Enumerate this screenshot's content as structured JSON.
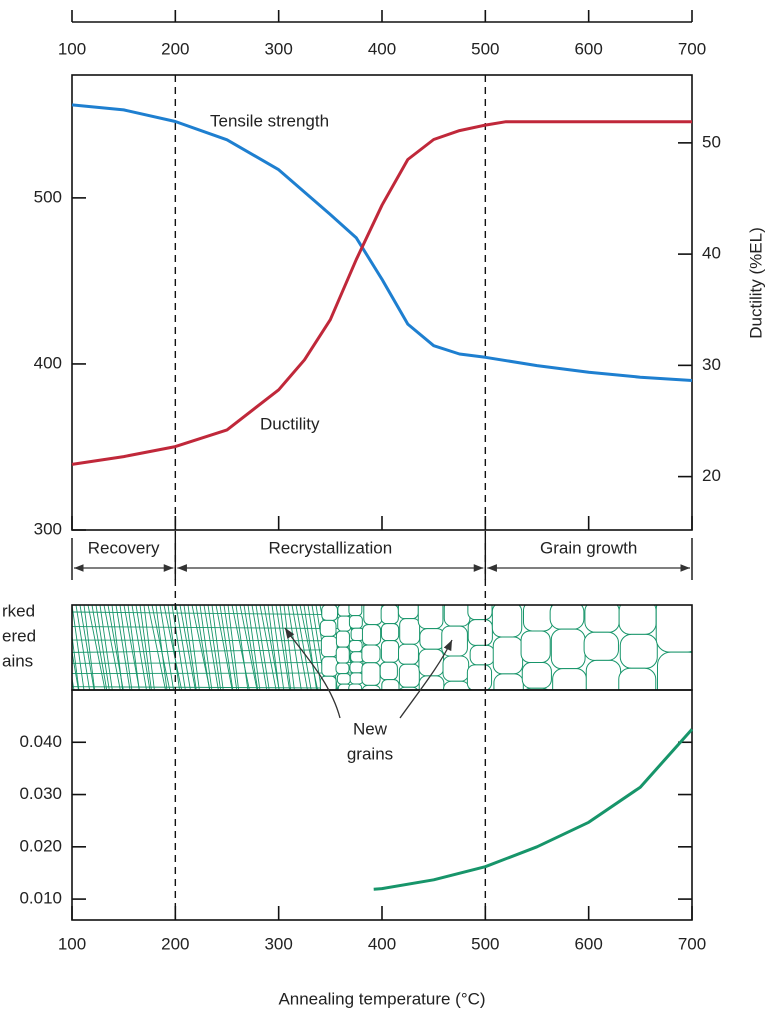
{
  "chart_data": [
    {
      "type": "line",
      "xlim": [
        100,
        700
      ],
      "xticks": [
        100,
        200,
        300,
        400,
        500,
        600,
        700
      ],
      "ylim": [
        300,
        574
      ],
      "yticks": [
        300,
        400,
        500
      ],
      "y2lim": [
        15.2,
        56.1
      ],
      "y2ticks": [
        20,
        30,
        40,
        50
      ],
      "y2label": "Ductility (%EL)",
      "regions": [
        {
          "label": "Recovery",
          "from": 100,
          "to": 200
        },
        {
          "label": "Recrystallization",
          "from": 200,
          "to": 500
        },
        {
          "label": "Grain growth",
          "from": 500,
          "to": 700
        }
      ],
      "series": [
        {
          "name": "Tensile strength",
          "color": "#1e7fd0",
          "x": [
            100,
            150,
            200,
            250,
            300,
            350,
            375,
            400,
            425,
            450,
            475,
            500,
            550,
            600,
            650,
            700
          ],
          "values": [
            556,
            553,
            546,
            535,
            517,
            490,
            476,
            451,
            424,
            411,
            406,
            404,
            399,
            395,
            392,
            390
          ]
        },
        {
          "name": "Ductility",
          "color": "#c0283a",
          "axis": "y2",
          "x": [
            100,
            150,
            200,
            250,
            300,
            325,
            350,
            375,
            400,
            425,
            450,
            475,
            500,
            520,
            600,
            700
          ],
          "values": [
            21.1,
            21.8,
            22.7,
            24.2,
            27.8,
            30.5,
            34.1,
            39.5,
            44.4,
            48.5,
            50.3,
            51.1,
            51.6,
            51.9,
            51.9,
            51.9
          ]
        }
      ]
    },
    {
      "type": "line",
      "xlabel": "Annealing temperature (°C)",
      "xlim": [
        100,
        700
      ],
      "xticks": [
        100,
        200,
        300,
        400,
        500,
        600,
        700
      ],
      "ylim": [
        0.006,
        0.05
      ],
      "yticks": [
        {
          "value": 0.01,
          "label": "0.010"
        },
        {
          "value": 0.02,
          "label": "0.020"
        },
        {
          "value": 0.03,
          "label": "0.030"
        },
        {
          "value": 0.04,
          "label": "0.040"
        }
      ],
      "series": [
        {
          "color": "#17956a",
          "x": [
            392,
            400,
            450,
            500,
            550,
            600,
            650,
            700
          ],
          "values": [
            0.0119,
            0.012,
            0.0137,
            0.0162,
            0.02,
            0.0247,
            0.0314,
            0.0425
          ]
        }
      ]
    }
  ],
  "micrograph": {
    "labels": [
      "rked",
      "ered",
      "ains"
    ],
    "annotation": [
      "New",
      "grains"
    ]
  }
}
